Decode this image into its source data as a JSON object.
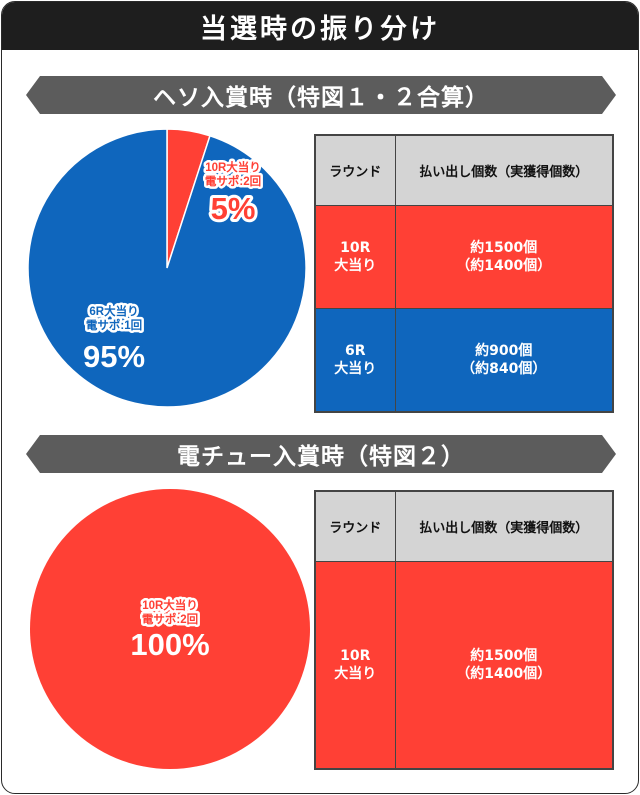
{
  "title": "当選時の振り分け",
  "sections": [
    {
      "title": "ヘソ入賞時（特図１・２合算）",
      "table": {
        "headers": [
          "ラウンド",
          "払い出し個数（実獲得個数）"
        ],
        "rows": [
          {
            "round": [
              "10R",
              "大当り"
            ],
            "payout": [
              "約1500個",
              "（約1400個）"
            ],
            "color": "#ff4035"
          },
          {
            "round": [
              "6R",
              "大当り"
            ],
            "payout": [
              "約900個",
              "（約840個）"
            ],
            "color": "#0f66bd"
          }
        ]
      }
    },
    {
      "title": "電チュー入賞時（特図２）",
      "table": {
        "headers": [
          "ラウンド",
          "払い出し個数（実獲得個数）"
        ],
        "rows": [
          {
            "round": [
              "10R",
              "大当り"
            ],
            "payout": [
              "約1500個",
              "（約1400個）"
            ],
            "color": "#ff4035"
          }
        ]
      }
    }
  ],
  "chart_data": [
    {
      "type": "pie",
      "slices": [
        {
          "label": [
            "10R大当り",
            "電サポ:2回"
          ],
          "value": 5,
          "value_label": "5%",
          "color": "#ff4035"
        },
        {
          "label": [
            "6R大当り",
            "電サポ:1回"
          ],
          "value": 95,
          "value_label": "95%",
          "color": "#0f66bd"
        }
      ]
    },
    {
      "type": "pie",
      "slices": [
        {
          "label": [
            "10R大当り",
            "電サポ:2回"
          ],
          "value": 100,
          "value_label": "100%",
          "color": "#ff4035"
        }
      ]
    }
  ]
}
